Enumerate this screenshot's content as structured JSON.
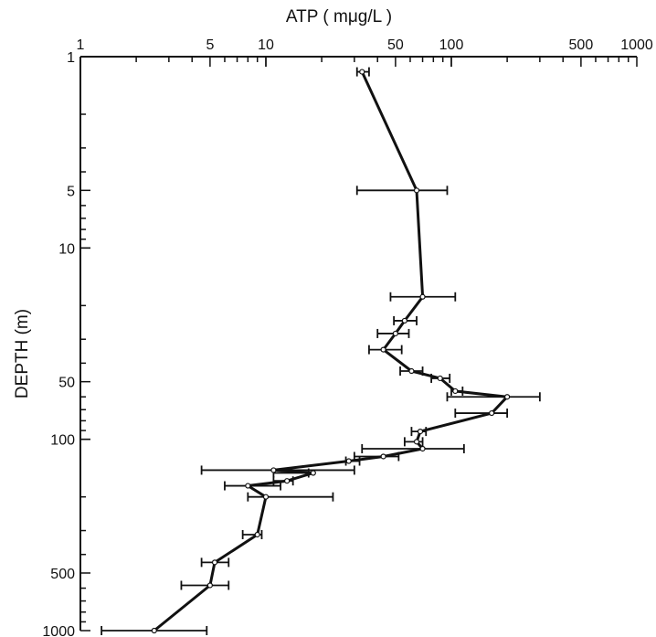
{
  "chart_data": {
    "type": "line",
    "title": "",
    "xlabel": "ATP ( mμg/L )",
    "ylabel": "DEPTH (m)",
    "x_scale": "log",
    "y_scale": "log",
    "y_inverted": true,
    "xlim": [
      1,
      1000
    ],
    "ylim": [
      1,
      1000
    ],
    "x_tick_labels": [
      "1",
      "5",
      "10",
      "50",
      "100",
      "500",
      "1000"
    ],
    "y_tick_labels": [
      "1",
      "5",
      "10",
      "50",
      "100",
      "500",
      "1000"
    ],
    "grid": false,
    "legend": "none",
    "points": [
      {
        "depth": 1.2,
        "atp": 33,
        "err_low": 31,
        "err_high": 36
      },
      {
        "depth": 5,
        "atp": 65,
        "err_low": 31,
        "err_high": 95
      },
      {
        "depth": 18,
        "atp": 70,
        "err_low": 47,
        "err_high": 105
      },
      {
        "depth": 24,
        "atp": 56,
        "err_low": 49,
        "err_high": 65
      },
      {
        "depth": 28,
        "atp": 50,
        "err_low": 40,
        "err_high": 59
      },
      {
        "depth": 34,
        "atp": 43,
        "err_low": 36,
        "err_high": 54
      },
      {
        "depth": 44,
        "atp": 61,
        "err_low": 53,
        "err_high": 70
      },
      {
        "depth": 48,
        "atp": 87,
        "err_low": 78,
        "err_high": 98
      },
      {
        "depth": 56,
        "atp": 105,
        "err_low": 100,
        "err_high": 115
      },
      {
        "depth": 60,
        "atp": 200,
        "err_low": 95,
        "err_high": 300
      },
      {
        "depth": 73,
        "atp": 165,
        "err_low": 105,
        "err_high": 200
      },
      {
        "depth": 91,
        "atp": 68,
        "err_low": 61,
        "err_high": 73
      },
      {
        "depth": 103,
        "atp": 65,
        "err_low": 56,
        "err_high": 70
      },
      {
        "depth": 112,
        "atp": 70,
        "err_low": 33,
        "err_high": 117
      },
      {
        "depth": 123,
        "atp": 43,
        "err_low": 30,
        "err_high": 52
      },
      {
        "depth": 130,
        "atp": 28,
        "err_low": 27,
        "err_high": 32
      },
      {
        "depth": 145,
        "atp": 11,
        "err_low": 4.5,
        "err_high": 30
      },
      {
        "depth": 150,
        "atp": 18,
        "err_low": 11,
        "err_high": 17
      },
      {
        "depth": 165,
        "atp": 13,
        "err_low": 11,
        "err_high": 14
      },
      {
        "depth": 175,
        "atp": 8,
        "err_low": 6,
        "err_high": 12
      },
      {
        "depth": 200,
        "atp": 10,
        "err_low": 8,
        "err_high": 23
      },
      {
        "depth": 315,
        "atp": 9,
        "err_low": 7.5,
        "err_high": 9.5
      },
      {
        "depth": 440,
        "atp": 5.3,
        "err_low": 4.5,
        "err_high": 6.3
      },
      {
        "depth": 580,
        "atp": 5,
        "err_low": 3.5,
        "err_high": 6.3
      },
      {
        "depth": 1000,
        "atp": 2.5,
        "err_low": 1.3,
        "err_high": 4.8
      }
    ]
  }
}
